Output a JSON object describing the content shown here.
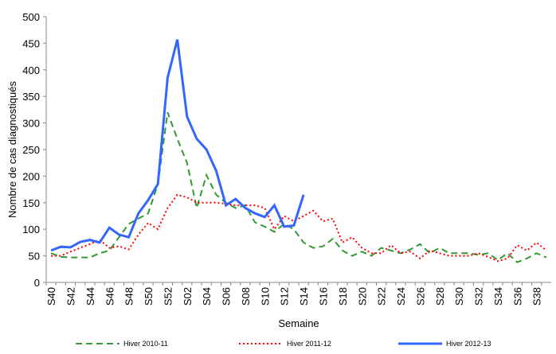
{
  "chart_data": {
    "type": "line",
    "y_label": "Nombre de cas diagnostiqués",
    "x_label": "Semaine",
    "categories": [
      "S40",
      null,
      "S42",
      null,
      "S44",
      null,
      "S46",
      null,
      "S48",
      null,
      "S50",
      null,
      "S52",
      null,
      "S02",
      null,
      "S04",
      null,
      "S06",
      null,
      "S08",
      null,
      "S10",
      null,
      "S12",
      null,
      "S14",
      null,
      "S16",
      null,
      "S18",
      null,
      "S20",
      null,
      "S22",
      null,
      "S24",
      null,
      "S26",
      null,
      "S28",
      null,
      "S30",
      null,
      "S32",
      null,
      "S34",
      null,
      "S36",
      null,
      "S38",
      null
    ],
    "ylim": [
      0,
      500
    ],
    "yticks": [
      0,
      50,
      100,
      150,
      200,
      250,
      300,
      350,
      400,
      450,
      500
    ],
    "legend": "bottom",
    "series": [
      {
        "name": "Hiver 2010-11",
        "color": "#339933",
        "dash": "8,5",
        "values": [
          55,
          48,
          47,
          47,
          47,
          55,
          60,
          85,
          110,
          120,
          130,
          185,
          320,
          270,
          225,
          140,
          202,
          165,
          150,
          140,
          145,
          113,
          105,
          95,
          110,
          100,
          75,
          65,
          68,
          82,
          60,
          50,
          58,
          50,
          65,
          60,
          55,
          62,
          72,
          55,
          65,
          55,
          55,
          55,
          52,
          55,
          42,
          55,
          38,
          45,
          55,
          47
        ]
      },
      {
        "name": "Hiver 2011-12",
        "color": "#ff0000",
        "dash": "2,3",
        "values": [
          50,
          50,
          58,
          65,
          72,
          80,
          65,
          68,
          62,
          90,
          112,
          100,
          140,
          165,
          160,
          150,
          150,
          150,
          148,
          145,
          145,
          145,
          140,
          100,
          125,
          115,
          125,
          135,
          115,
          120,
          75,
          85,
          65,
          55,
          55,
          70,
          55,
          58,
          45,
          60,
          55,
          50,
          50,
          50,
          55,
          48,
          40,
          45,
          70,
          60,
          75,
          60
        ]
      },
      {
        "name": "Hiver 2012-13",
        "color": "#3366ff",
        "dash": "",
        "values": [
          60,
          67,
          66,
          76,
          80,
          75,
          103,
          90,
          85,
          130,
          155,
          185,
          385,
          457,
          312,
          270,
          250,
          210,
          145,
          157,
          140,
          130,
          123,
          145,
          105,
          107,
          165,
          null,
          null,
          null,
          null,
          null,
          null,
          null,
          null,
          null,
          null,
          null,
          null,
          null,
          null,
          null,
          null,
          null,
          null,
          null,
          null,
          null,
          null,
          null,
          null,
          null
        ]
      }
    ]
  }
}
